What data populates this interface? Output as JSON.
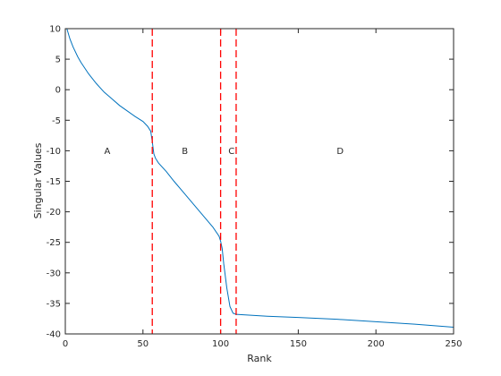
{
  "chart_data": {
    "type": "line",
    "xlabel": "Rank",
    "ylabel": "Singular Values",
    "series": [
      {
        "color": "#0072bd",
        "x": [
          1,
          3,
          5,
          8,
          10,
          15,
          20,
          25,
          30,
          35,
          40,
          45,
          50,
          53,
          55,
          56,
          57,
          58,
          60,
          65,
          70,
          75,
          80,
          85,
          90,
          95,
          99,
          100,
          101,
          102,
          104,
          106,
          108,
          110,
          130,
          150,
          175,
          200,
          225,
          250
        ],
        "values": [
          10,
          8.3,
          7,
          5.4,
          4.5,
          2.6,
          1,
          -0.4,
          -1.5,
          -2.6,
          -3.5,
          -4.4,
          -5.2,
          -6,
          -6.8,
          -8.5,
          -10.5,
          -11.2,
          -12,
          -13.4,
          -15,
          -16.5,
          -18,
          -19.5,
          -21,
          -22.5,
          -24,
          -24.8,
          -26,
          -28.5,
          -32.5,
          -35.5,
          -36.6,
          -36.8,
          -37.1,
          -37.3,
          -37.6,
          -38,
          -38.4,
          -38.9
        ]
      }
    ],
    "vlines": [
      56,
      100,
      110
    ],
    "vline_color": "#ff0000",
    "annotations": [
      {
        "text": "A",
        "x": 27,
        "y": -10
      },
      {
        "text": "B",
        "x": 77,
        "y": -10
      },
      {
        "text": "C",
        "x": 107,
        "y": -10
      },
      {
        "text": "D",
        "x": 177,
        "y": -10
      }
    ],
    "xlim": [
      0,
      250
    ],
    "xticks": [
      0,
      50,
      100,
      150,
      200,
      250
    ],
    "ylim": [
      -40,
      10
    ],
    "yticks": [
      10,
      5,
      0,
      -5,
      -10,
      -15,
      -20,
      -25,
      -30,
      -35,
      -40
    ]
  }
}
